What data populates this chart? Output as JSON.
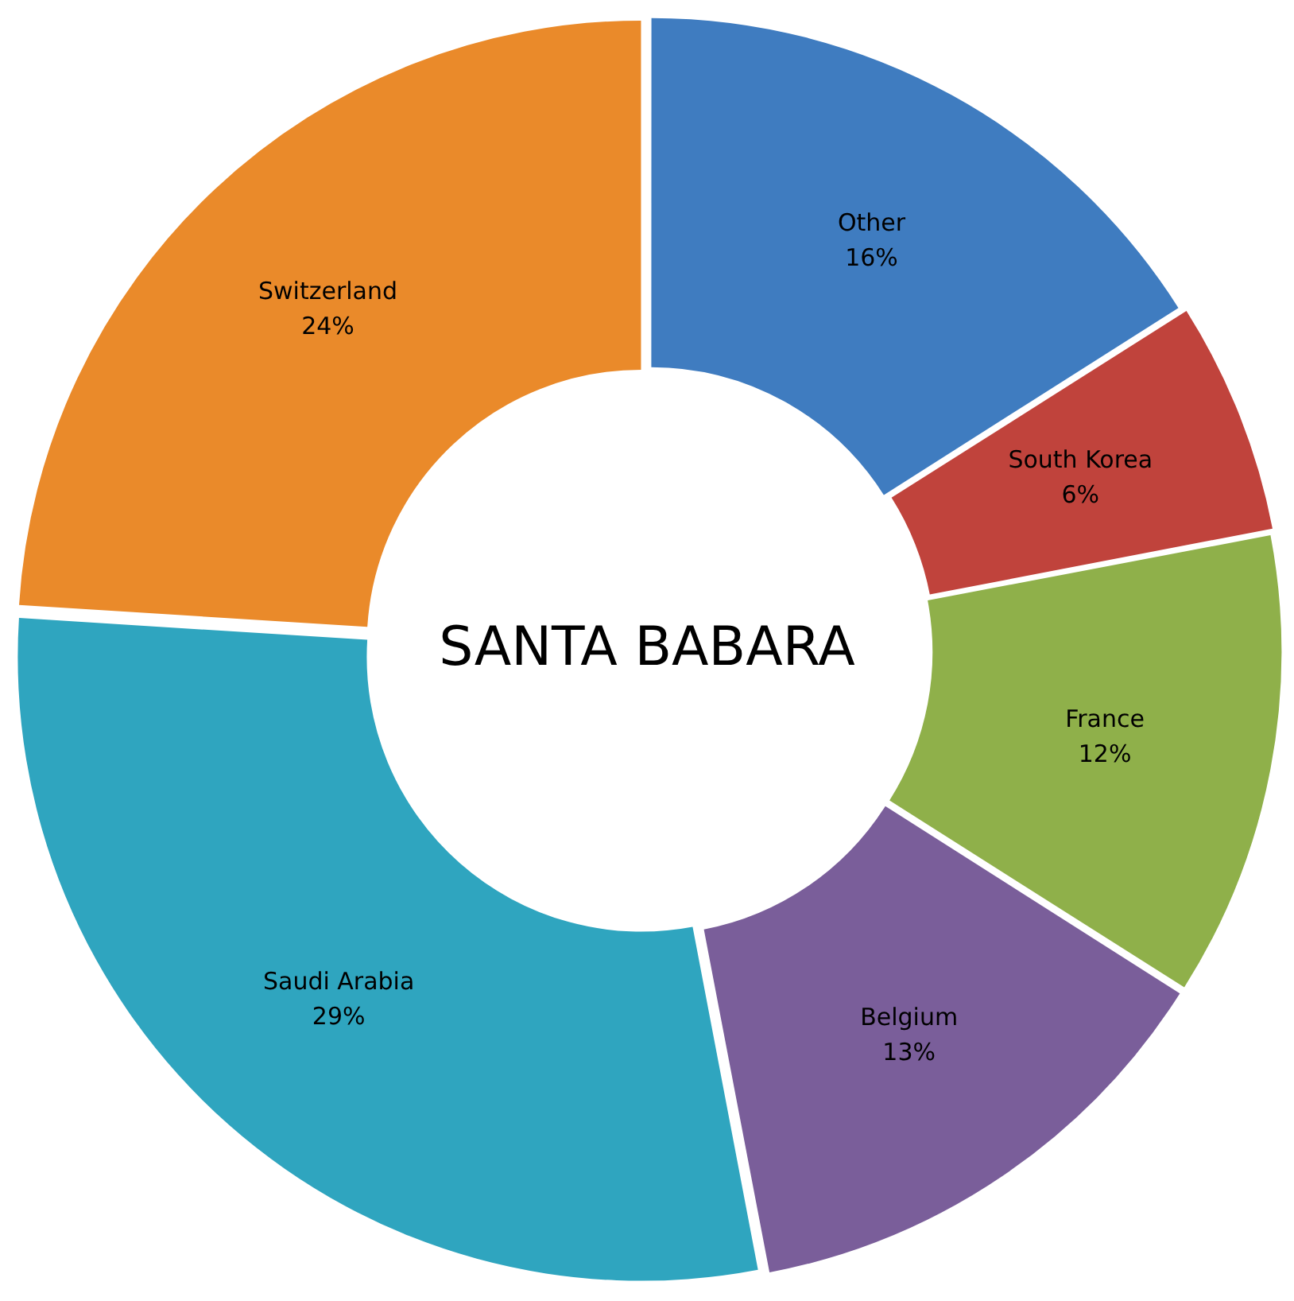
{
  "chart_data": {
    "type": "donut",
    "title": "SANTA BABARA",
    "categories": [
      "Other",
      "South Korea",
      "France",
      "Belgium",
      "Saudi Arabia",
      "Switzerland"
    ],
    "values": [
      16,
      6,
      12,
      13,
      29,
      24
    ],
    "value_labels": [
      "16%",
      "6%",
      "12%",
      "13%",
      "29%",
      "24%"
    ],
    "colors": [
      "#3f7cc0",
      "#c0433c",
      "#8fb04a",
      "#7a5e9a",
      "#2fa5bf",
      "#ea8a2a"
    ],
    "legend": false
  }
}
